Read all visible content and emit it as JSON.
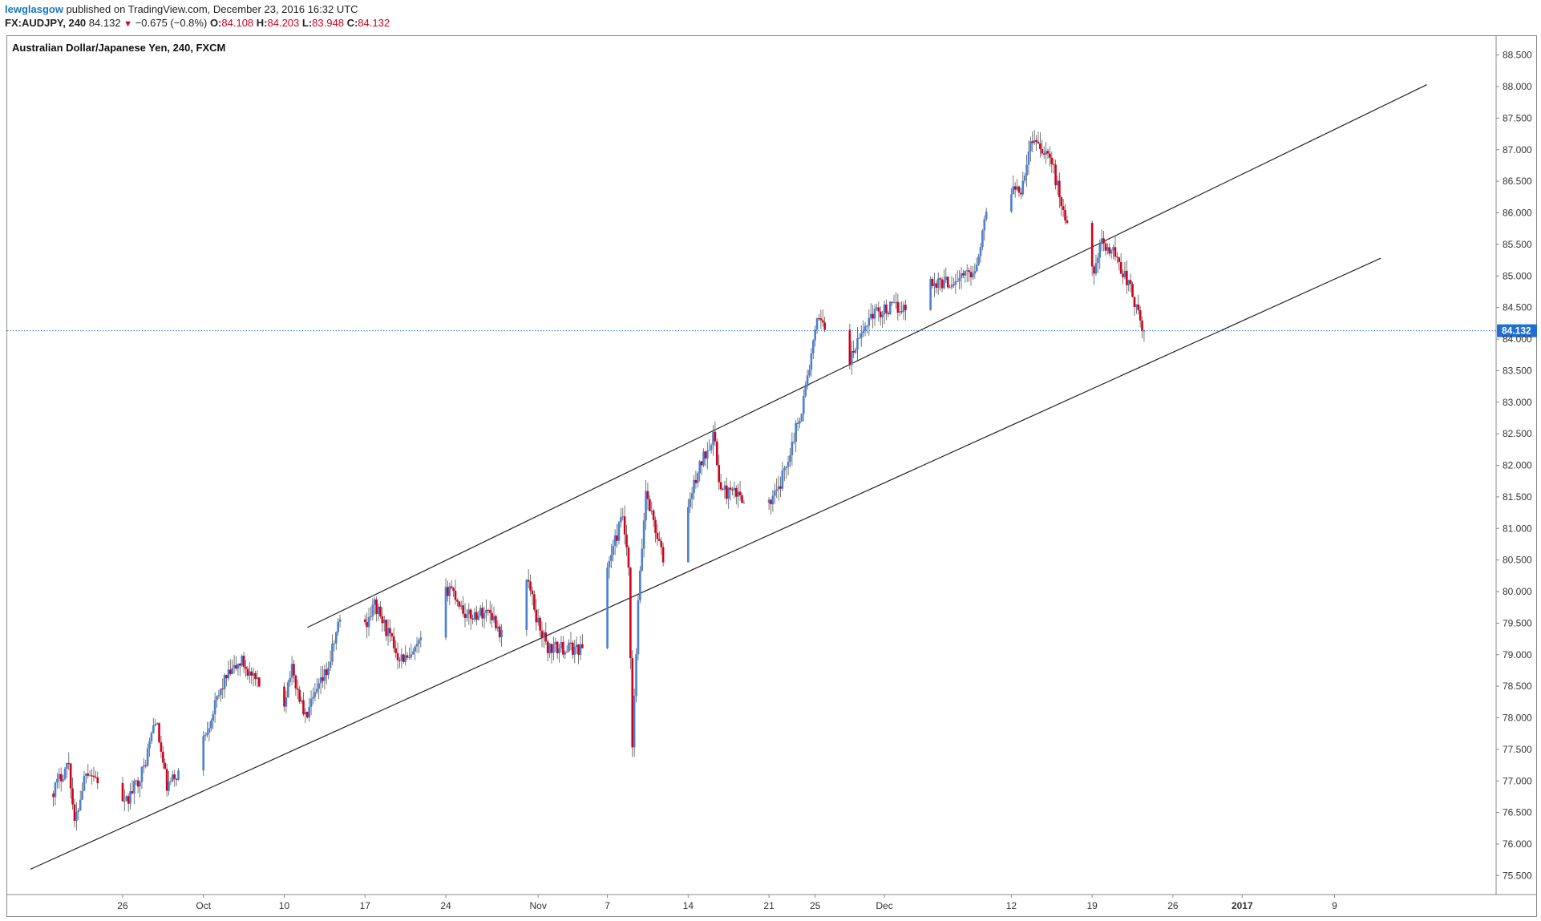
{
  "header": {
    "author": "lewglasgow",
    "published_text": " published on TradingView.com, December 23, 2016 16:32 UTC",
    "symbol": "FX:AUDJPY, 240",
    "last_price": "84.132",
    "change_arrow": "▼",
    "change": "−0.675 (−0.8%)",
    "open_label": "O:",
    "open": "84.108",
    "high_label": "H:",
    "high": "84.203",
    "low_label": "L:",
    "low": "83.948",
    "close_label": "C:",
    "close": "84.132"
  },
  "colors": {
    "up": "#4a7fd4",
    "down": "#d0021b",
    "trendline": "#222222",
    "price_line": "#1f6fd1",
    "price_badge": "#1f6fd1"
  },
  "chart_data": {
    "type": "candlestick",
    "title": "Australian Dollar/Japanese Yen, 240, FXCM",
    "y_ticks": [
      75.5,
      76.0,
      76.5,
      77.0,
      77.5,
      78.0,
      78.5,
      79.0,
      79.5,
      80.0,
      80.5,
      81.0,
      81.5,
      82.0,
      82.5,
      83.0,
      83.5,
      84.0,
      84.5,
      85.0,
      85.5,
      86.0,
      86.5,
      87.0,
      87.5,
      88.0,
      88.5
    ],
    "y_tick_labels": [
      "75.500",
      "76.000",
      "76.500",
      "77.000",
      "77.500",
      "78.000",
      "78.500",
      "79.000",
      "79.500",
      "80.000",
      "80.500",
      "81.000",
      "81.500",
      "82.000",
      "82.500",
      "83.000",
      "83.500",
      "84.000",
      "84.500",
      "85.000",
      "85.500",
      "86.000",
      "86.500",
      "87.000",
      "87.500",
      "88.000",
      "88.500"
    ],
    "ylim": [
      75.2,
      88.8
    ],
    "x_labels": [
      "26",
      "Oct",
      "10",
      "17",
      "24",
      "Nov",
      "7",
      "14",
      "21",
      "25",
      "Dec",
      "12",
      "19",
      "26",
      "2017",
      "9"
    ],
    "x_label_dates": [
      "2016-09-26",
      "2016-10-03",
      "2016-10-10",
      "2016-10-17",
      "2016-10-24",
      "2016-11-01",
      "2016-11-07",
      "2016-11-14",
      "2016-11-21",
      "2016-11-25",
      "2016-12-01",
      "2016-12-12",
      "2016-12-19",
      "2016-12-26",
      "2017-01-01",
      "2017-01-09"
    ],
    "x_bold": [
      "2017"
    ],
    "last_price": 84.132,
    "last_price_label": "84.132",
    "path_anchors": [
      [
        "2016-09-20T00:00",
        76.8
      ],
      [
        "2016-09-21T12:00",
        77.3
      ],
      [
        "2016-09-22T00:00",
        76.3
      ],
      [
        "2016-09-23T00:00",
        77.2
      ],
      [
        "2016-09-26T08:00",
        76.6
      ],
      [
        "2016-09-28T00:00",
        77.2
      ],
      [
        "2016-09-29T00:00",
        78.0
      ],
      [
        "2016-09-30T00:00",
        76.9
      ],
      [
        "2016-10-03T00:00",
        77.6
      ],
      [
        "2016-10-05T00:00",
        78.6
      ],
      [
        "2016-10-06T12:00",
        78.9
      ],
      [
        "2016-10-07T12:00",
        78.6
      ],
      [
        "2016-10-10T00:00",
        78.1
      ],
      [
        "2016-10-10T18:00",
        78.8
      ],
      [
        "2016-10-12T00:00",
        78.0
      ],
      [
        "2016-10-14T00:00",
        78.8
      ],
      [
        "2016-10-15T00:00",
        79.6
      ],
      [
        "2016-10-16T12:00",
        79.2
      ],
      [
        "2016-10-18T00:00",
        79.8
      ],
      [
        "2016-10-20T00:00",
        79.0
      ],
      [
        "2016-10-21T00:00",
        78.9
      ],
      [
        "2016-10-23T00:00",
        79.5
      ],
      [
        "2016-10-24T12:00",
        80.1
      ],
      [
        "2016-10-26T00:00",
        79.6
      ],
      [
        "2016-10-28T00:00",
        79.7
      ],
      [
        "2016-10-29T00:00",
        79.3
      ],
      [
        "2016-10-31T00:00",
        80.4
      ],
      [
        "2016-11-01T00:00",
        79.6
      ],
      [
        "2016-11-02T00:00",
        79.1
      ],
      [
        "2016-11-05T00:00",
        79.1
      ],
      [
        "2016-11-05T18:00",
        79.6
      ],
      [
        "2016-11-07T00:00",
        80.3
      ],
      [
        "2016-11-08T12:00",
        81.2
      ],
      [
        "2016-11-09T00:00",
        80.3
      ],
      [
        "2016-11-09T08:00",
        77.5
      ],
      [
        "2016-11-09T20:00",
        79.8
      ],
      [
        "2016-11-10T12:00",
        81.6
      ],
      [
        "2016-11-12T00:00",
        80.5
      ],
      [
        "2016-11-13T00:00",
        80.6
      ],
      [
        "2016-11-15T00:00",
        81.9
      ],
      [
        "2016-11-16T08:00",
        82.5
      ],
      [
        "2016-11-17T00:00",
        81.6
      ],
      [
        "2016-11-19T00:00",
        81.5
      ],
      [
        "2016-11-20T12:00",
        81.2
      ],
      [
        "2016-11-22T00:00",
        81.6
      ],
      [
        "2016-11-24T00:00",
        82.9
      ],
      [
        "2016-11-25T12:00",
        84.4
      ],
      [
        "2016-11-26T12:00",
        84.0
      ],
      [
        "2016-11-27T12:00",
        83.3
      ],
      [
        "2016-11-28T12:00",
        83.8
      ],
      [
        "2016-11-30T00:00",
        84.4
      ],
      [
        "2016-12-02T00:00",
        84.5
      ],
      [
        "2016-12-03T12:00",
        84.5
      ],
      [
        "2016-12-04T06:00",
        84.9
      ],
      [
        "2016-12-07T00:00",
        84.9
      ],
      [
        "2016-12-09T00:00",
        85.1
      ],
      [
        "2016-12-10T12:00",
        86.4
      ],
      [
        "2016-12-11T12:00",
        86.4
      ],
      [
        "2016-12-13T00:00",
        86.4
      ],
      [
        "2016-12-14T00:00",
        87.2
      ],
      [
        "2016-12-15T12:00",
        86.9
      ],
      [
        "2016-12-17T00:00",
        85.8
      ],
      [
        "2016-12-18T12:00",
        84.7
      ],
      [
        "2016-12-20T00:00",
        85.5
      ],
      [
        "2016-12-21T00:00",
        85.4
      ],
      [
        "2016-12-22T12:00",
        84.8
      ],
      [
        "2016-12-23T12:00",
        84.132
      ]
    ],
    "trendlines": [
      {
        "from": [
          "2016-09-18T00:00",
          75.6
        ],
        "to": [
          "2017-01-13T00:00",
          85.28
        ]
      },
      {
        "from": [
          "2016-10-12T00:00",
          79.43
        ],
        "to": [
          "2017-01-17T00:00",
          88.03
        ]
      }
    ]
  }
}
